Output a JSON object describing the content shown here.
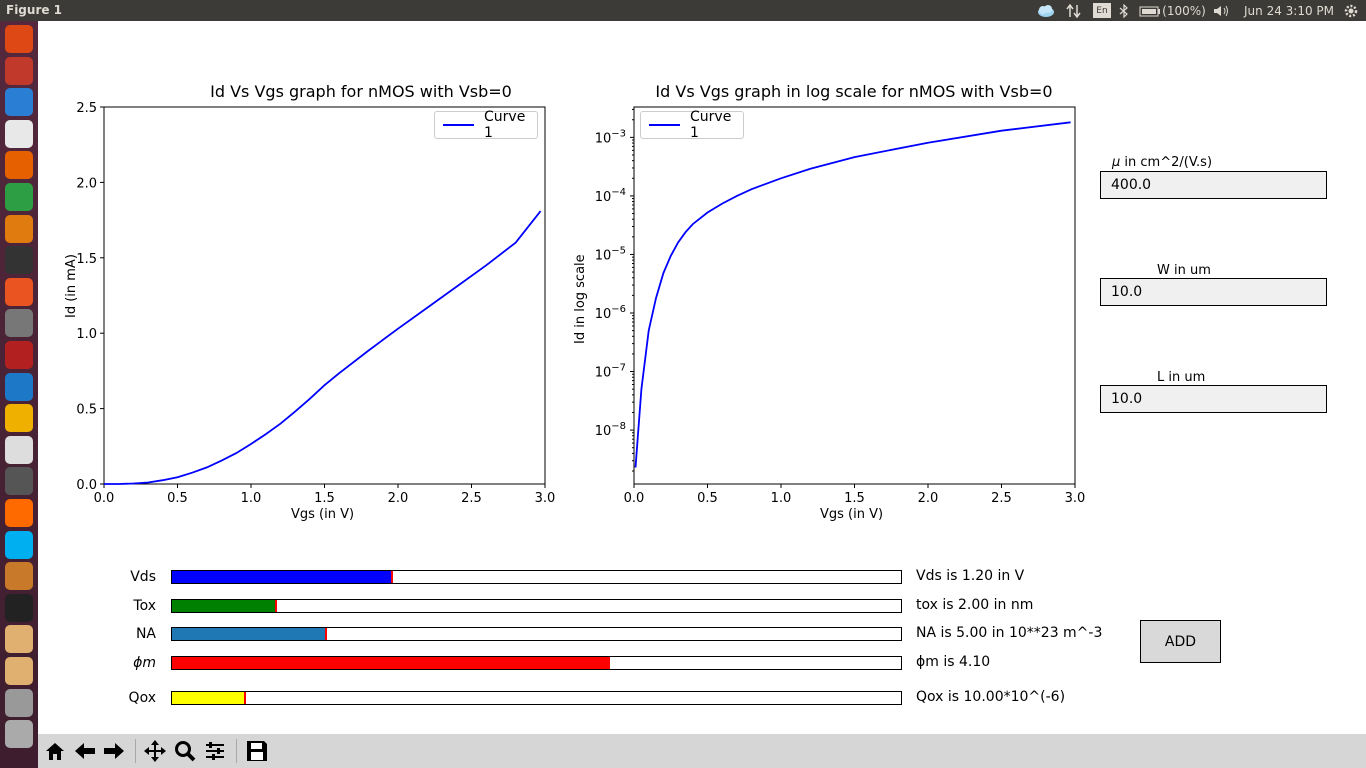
{
  "window": {
    "title": "Figure 1"
  },
  "tray": {
    "keyboard": "En",
    "battery": "(100%)",
    "clock": "Jun 24  3:10 PM"
  },
  "plot1": {
    "title": "Id Vs Vgs graph for nMOS with Vsb=0",
    "xlabel": "Vgs (in V)",
    "ylabel": "Id (in mA)",
    "legend": "Curve 1",
    "xticks": [
      "0.0",
      "0.5",
      "1.0",
      "1.5",
      "2.0",
      "2.5",
      "3.0"
    ],
    "yticks": [
      "0.0",
      "0.5",
      "1.0",
      "1.5",
      "2.0",
      "2.5"
    ]
  },
  "plot2": {
    "title": "Id Vs Vgs graph in log scale for nMOS with Vsb=0",
    "xlabel": "Vgs (in V)",
    "ylabel": "Id in log scale",
    "legend": "Curve 1",
    "xticks": [
      "0.0",
      "0.5",
      "1.0",
      "1.5",
      "2.0",
      "2.5",
      "3.0"
    ]
  },
  "chart_data": [
    {
      "type": "line",
      "title": "Id Vs Vgs graph for nMOS with Vsb=0",
      "xlabel": "Vgs (in V)",
      "ylabel": "Id (in mA)",
      "xlim": [
        0,
        3.0
      ],
      "ylim": [
        0,
        2.5
      ],
      "legend_position": "top-right",
      "series": [
        {
          "name": "Curve 1",
          "color": "#0000ff",
          "x": [
            0.0,
            0.1,
            0.2,
            0.3,
            0.4,
            0.5,
            0.6,
            0.7,
            0.8,
            0.9,
            1.0,
            1.1,
            1.2,
            1.3,
            1.4,
            1.5,
            1.6,
            1.8,
            2.0,
            2.2,
            2.4,
            2.6,
            2.8,
            2.97
          ],
          "y": [
            0.0,
            0.0,
            0.003,
            0.01,
            0.025,
            0.045,
            0.075,
            0.11,
            0.155,
            0.205,
            0.265,
            0.33,
            0.4,
            0.48,
            0.565,
            0.655,
            0.735,
            0.885,
            1.03,
            1.17,
            1.31,
            1.45,
            1.6,
            1.81
          ]
        }
      ]
    },
    {
      "type": "line",
      "title": "Id Vs Vgs graph in log scale for nMOS with Vsb=0",
      "xlabel": "Vgs (in V)",
      "ylabel": "Id in log scale",
      "xlim": [
        0,
        3.0
      ],
      "yscale": "log",
      "ylim": [
        1.2e-09,
        0.0033
      ],
      "yticks": [
        "10^-8",
        "10^-7",
        "10^-6",
        "10^-5",
        "10^-4",
        "10^-3"
      ],
      "legend_position": "top-left",
      "series": [
        {
          "name": "Curve 1",
          "color": "#0000ff",
          "x": [
            0.01,
            0.05,
            0.1,
            0.15,
            0.2,
            0.25,
            0.3,
            0.35,
            0.4,
            0.5,
            0.6,
            0.7,
            0.8,
            1.0,
            1.2,
            1.5,
            2.0,
            2.5,
            2.97
          ],
          "y": [
            2.3e-09,
            5e-08,
            5e-07,
            1.8e-06,
            4.8e-06,
            9.5e-06,
            1.6e-05,
            2.4e-05,
            3.3e-05,
            5.2e-05,
            7.4e-05,
            0.0001,
            0.00013,
            0.0002,
            0.00029,
            0.00046,
            0.00081,
            0.0013,
            0.00181
          ]
        }
      ]
    }
  ],
  "textboxes": [
    {
      "label": "μ in cm^2/(V.s)",
      "value": "400.0"
    },
    {
      "label": "W in um",
      "value": "10.0"
    },
    {
      "label": "L in um",
      "value": "10.0"
    }
  ],
  "sliders": [
    {
      "label": "Vds",
      "value_text": "Vds is 1.20 in V",
      "fraction": 0.302,
      "color": "#0000ff"
    },
    {
      "label": "Tox",
      "value_text": "tox is 2.00 in nm",
      "fraction": 0.143,
      "color": "#008000"
    },
    {
      "label": "NA",
      "value_text": "NA is 5.00 in 10**23 m^-3",
      "fraction": 0.211,
      "color": "#1f77b4"
    },
    {
      "label": "ϕm",
      "value_text": "ϕm is 4.10",
      "fraction": 0.6,
      "color": "#ff0000"
    },
    {
      "label": "Qox",
      "value_text": "Qox is 10.00*10^(-6)",
      "fraction": 0.1,
      "color": "#ffff00"
    }
  ],
  "add_button": "ADD",
  "launcher_icons": [
    "ubuntu-icon",
    "files-icon",
    "document-icon",
    "chrome-icon",
    "firefox-icon",
    "calc-icon",
    "impress-icon",
    "amazon-icon",
    "software-icon",
    "settings-icon",
    "app-icon",
    "vscode-icon",
    "sublime-icon",
    "editor-icon",
    "system-icon",
    "safari-icon",
    "skype-icon",
    "package-icon",
    "terminal-icon",
    "compass-icon",
    "compass2-icon",
    "drive-icon",
    "printer-icon"
  ]
}
